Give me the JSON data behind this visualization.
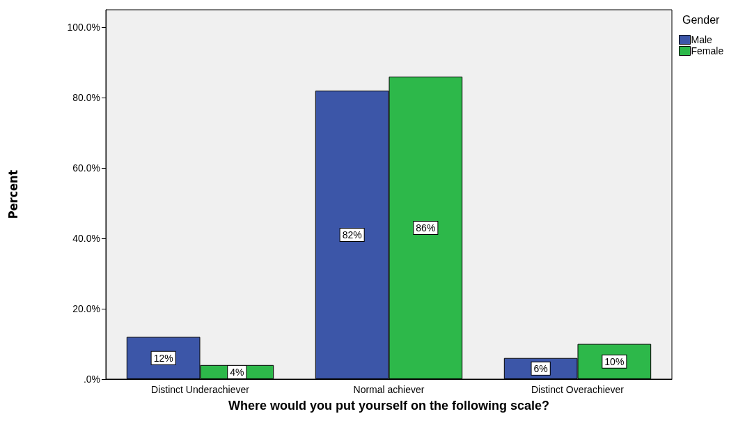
{
  "chart_data": {
    "type": "bar",
    "xlabel": "Where would you put yourself on the following scale?",
    "ylabel": "Percent",
    "legend_title": "Gender",
    "categories": [
      "Distinct Underachiever",
      "Normal achiever",
      "Distinct Overachiever"
    ],
    "series": [
      {
        "name": "Male",
        "color": "#3c56a8",
        "values": [
          12,
          82,
          6
        ],
        "value_labels": [
          "12%",
          "82%",
          "6%"
        ]
      },
      {
        "name": "Female",
        "color": "#2db84a",
        "values": [
          4,
          86,
          10
        ],
        "value_labels": [
          "4%",
          "86%",
          "10%"
        ]
      }
    ],
    "ylim": [
      0,
      105
    ],
    "yticks": [
      {
        "value": 0,
        "label": ".0%"
      },
      {
        "value": 20,
        "label": "20.0%"
      },
      {
        "value": 40,
        "label": "40.0%"
      },
      {
        "value": 60,
        "label": "60.0%"
      },
      {
        "value": 80,
        "label": "80.0%"
      },
      {
        "value": 100,
        "label": "100.0%"
      }
    ],
    "grid": false,
    "legend": "top right"
  }
}
